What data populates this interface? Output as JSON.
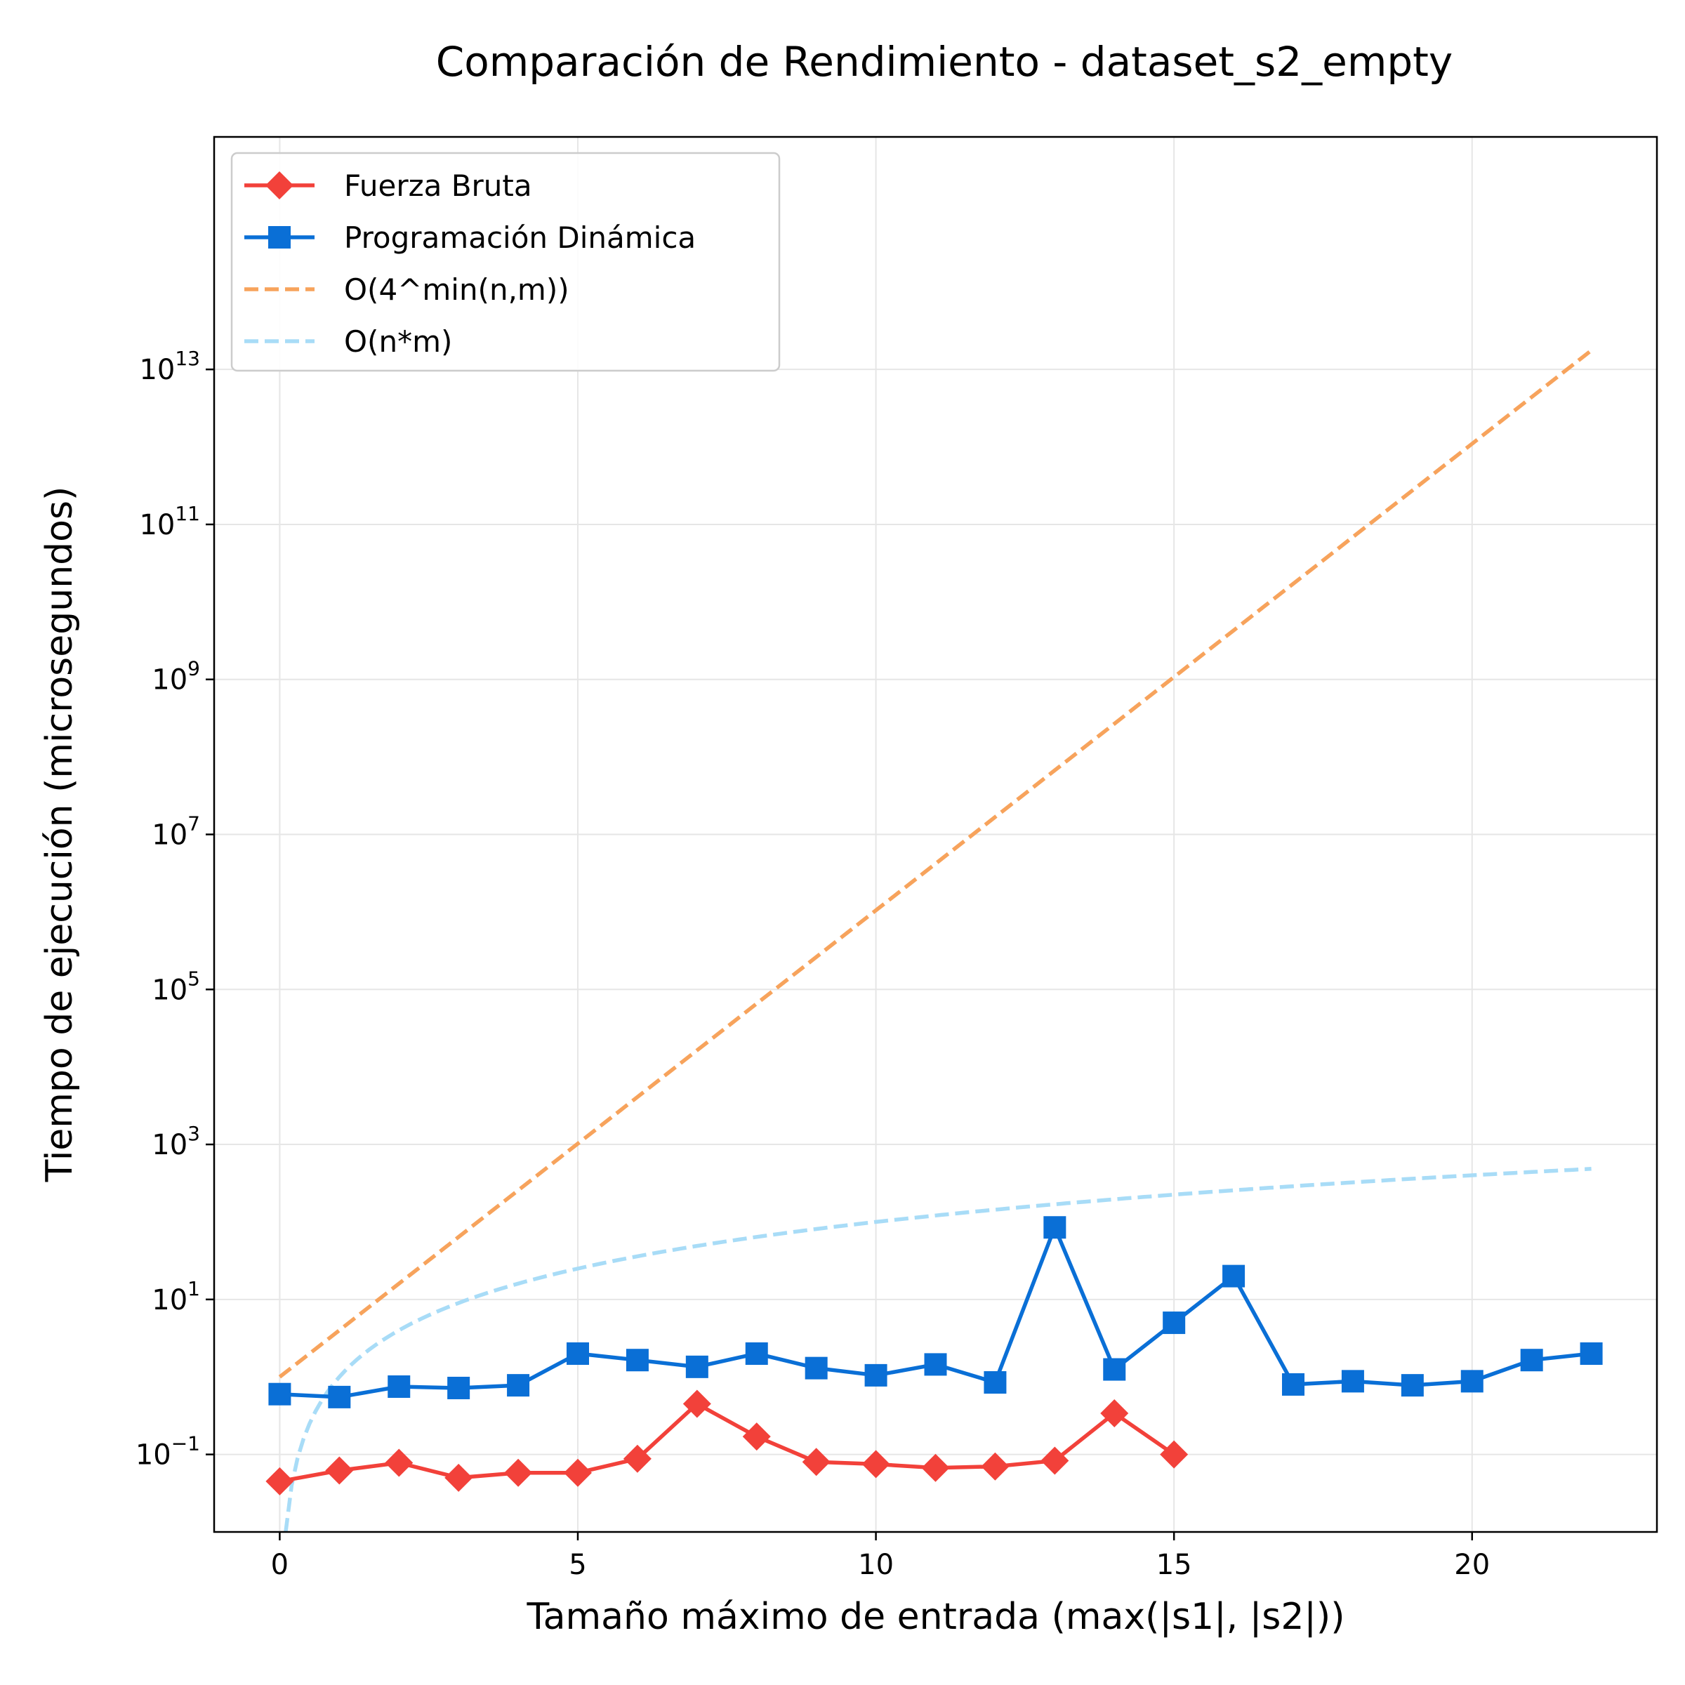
{
  "chart_data": {
    "type": "line",
    "title": "Comparación de Rendimiento - dataset_s2_empty",
    "xlabel": "Tamaño máximo de entrada (max(|s1|, |s2|))",
    "ylabel": "Tiempo de ejecución (microsegundos)",
    "xlim": [
      -1.1,
      23.1
    ],
    "ylim": [
      0.01,
      10000000000000000
    ],
    "yscale": "log",
    "grid": true,
    "legend_position": "top-left",
    "x_ticks": [
      0,
      5,
      10,
      15,
      20
    ],
    "y_ticks": [
      {
        "value": 0.1,
        "base": "10",
        "exp": "−1"
      },
      {
        "value": 10,
        "base": "10",
        "exp": "1"
      },
      {
        "value": 1000,
        "base": "10",
        "exp": "3"
      },
      {
        "value": 100000,
        "base": "10",
        "exp": "5"
      },
      {
        "value": 10000000,
        "base": "10",
        "exp": "7"
      },
      {
        "value": 1000000000,
        "base": "10",
        "exp": "9"
      },
      {
        "value": 100000000000,
        "base": "10",
        "exp": "11"
      },
      {
        "value": 10000000000000,
        "base": "10",
        "exp": "13"
      }
    ],
    "series": [
      {
        "name": "Fuerza Bruta",
        "color": "#f2413a",
        "marker": "diamond",
        "style": "solid",
        "x": [
          0,
          1,
          2,
          3,
          4,
          5,
          6,
          7,
          8,
          9,
          10,
          11,
          12,
          13,
          14,
          15
        ],
        "y": [
          0.045,
          0.062,
          0.078,
          0.05,
          0.058,
          0.058,
          0.088,
          0.45,
          0.17,
          0.08,
          0.075,
          0.067,
          0.07,
          0.083,
          0.34,
          0.1
        ]
      },
      {
        "name": "Programación Dinámica",
        "color": "#0a6fd6",
        "marker": "square",
        "style": "solid",
        "x": [
          0,
          1,
          2,
          3,
          4,
          5,
          6,
          7,
          8,
          9,
          10,
          11,
          12,
          13,
          14,
          15,
          16,
          17,
          18,
          19,
          20,
          21,
          22
        ],
        "y": [
          0.6,
          0.55,
          0.75,
          0.72,
          0.78,
          2.0,
          1.65,
          1.35,
          2.0,
          1.3,
          1.05,
          1.45,
          0.85,
          85,
          1.25,
          5.0,
          20,
          0.8,
          0.88,
          0.78,
          0.88,
          1.65,
          2.0
        ]
      },
      {
        "name": "O(4^min(n,m))",
        "color": "#f7a35c",
        "marker": "none",
        "style": "dashed",
        "formula": "4^n"
      },
      {
        "name": "O(n*m)",
        "color": "#a8dcf7",
        "marker": "none",
        "style": "dashed",
        "formula": "n^2"
      }
    ]
  }
}
